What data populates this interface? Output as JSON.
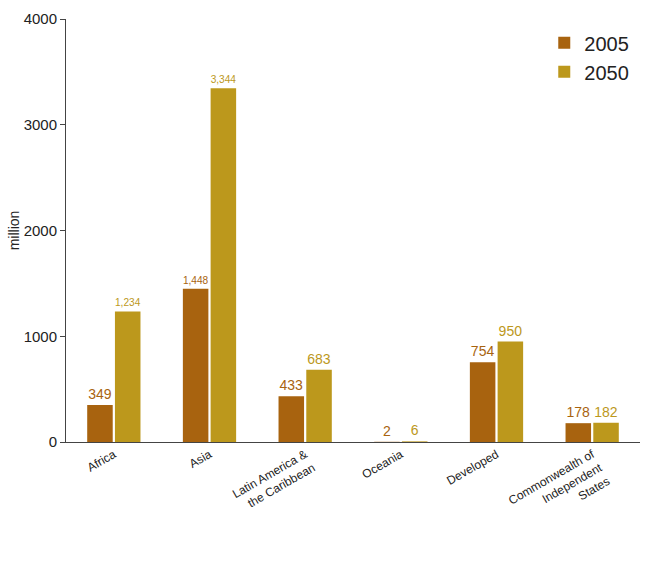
{
  "chart_data": {
    "type": "bar",
    "y_label": "million",
    "categories": [
      "Africa",
      "Asia",
      "Latin America & the Caribbean",
      "Oceania",
      "Developed",
      "Commonwealth of Independent States"
    ],
    "series": [
      {
        "name": "2005",
        "color": "#a8630f",
        "values": [
          349,
          1448,
          433,
          2,
          754,
          178
        ],
        "value_labels": [
          "349",
          "1,448",
          "433",
          "2",
          "754",
          "178"
        ]
      },
      {
        "name": "2050",
        "color": "#bc981c",
        "values": [
          1234,
          3344,
          683,
          6,
          950,
          182
        ],
        "value_labels": [
          "1,234",
          "3,344",
          "683",
          "6",
          "950",
          "182"
        ]
      }
    ],
    "ylim": [
      0,
      4000
    ],
    "yticks": [
      0,
      1000,
      2000,
      3000,
      4000
    ],
    "grid": false,
    "legend": "top-right",
    "data_labels": true
  }
}
